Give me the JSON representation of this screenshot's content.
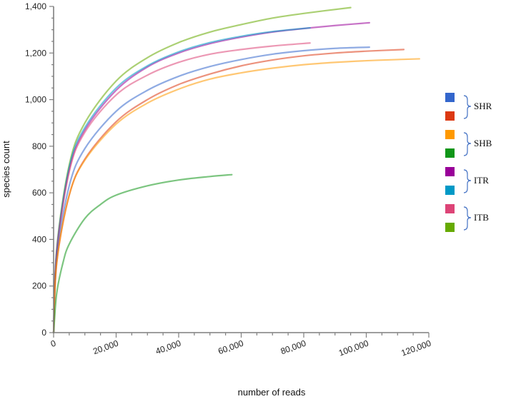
{
  "chart_data": {
    "type": "line",
    "xlabel": "number of reads",
    "ylabel": "species count",
    "xlim": [
      0,
      120000
    ],
    "ylim": [
      0,
      1400
    ],
    "x_ticks": [
      "0",
      "20,000",
      "40,000",
      "60,000",
      "80,000",
      "100,000",
      "120,000"
    ],
    "y_ticks": [
      "0",
      "200",
      "400",
      "600",
      "800",
      "1,000",
      "1,200",
      "1,400"
    ],
    "grid": false,
    "legend_position": "right",
    "legend_groups": [
      {
        "label": "SHR",
        "colors": [
          "#3366cc",
          "#dc3912"
        ]
      },
      {
        "label": "SHB",
        "colors": [
          "#ff9900",
          "#109618"
        ]
      },
      {
        "label": "ITR",
        "colors": [
          "#990099",
          "#0099c6"
        ]
      },
      {
        "label": "ITB",
        "colors": [
          "#dd4477",
          "#66aa00"
        ]
      }
    ],
    "series": [
      {
        "color": "#66aa00",
        "x": [
          0,
          1000,
          5000,
          10000,
          20000,
          30000,
          40000,
          50000,
          60000,
          70000,
          80000,
          95000
        ],
        "y": [
          0,
          360,
          720,
          900,
          1080,
          1180,
          1245,
          1290,
          1322,
          1350,
          1370,
          1395
        ]
      },
      {
        "color": "#990099",
        "x": [
          0,
          1000,
          5000,
          10000,
          20000,
          30000,
          40000,
          50000,
          60000,
          70000,
          80000,
          90000,
          101000
        ],
        "y": [
          0,
          350,
          700,
          870,
          1040,
          1140,
          1200,
          1240,
          1268,
          1290,
          1305,
          1318,
          1330
        ]
      },
      {
        "color": "#0099c6",
        "x": [
          0,
          1000,
          5000,
          10000,
          20000,
          30000,
          40000,
          50000,
          60000,
          70000,
          82000
        ],
        "y": [
          0,
          350,
          710,
          880,
          1050,
          1145,
          1205,
          1245,
          1272,
          1292,
          1308
        ]
      },
      {
        "color": "#dd4477",
        "x": [
          0,
          1000,
          5000,
          10000,
          20000,
          30000,
          40000,
          50000,
          60000,
          70000,
          82000
        ],
        "y": [
          0,
          340,
          690,
          860,
          1020,
          1105,
          1160,
          1195,
          1215,
          1230,
          1243
        ]
      },
      {
        "color": "#3366cc",
        "x": [
          0,
          1000,
          5000,
          10000,
          20000,
          30000,
          40000,
          50000,
          60000,
          70000,
          80000,
          90000,
          101000
        ],
        "y": [
          0,
          320,
          630,
          790,
          950,
          1040,
          1100,
          1142,
          1172,
          1195,
          1210,
          1220,
          1225
        ]
      },
      {
        "color": "#dc3912",
        "x": [
          0,
          1000,
          5000,
          10000,
          20000,
          30000,
          40000,
          50000,
          60000,
          70000,
          80000,
          90000,
          100000,
          112000
        ],
        "y": [
          0,
          300,
          590,
          745,
          905,
          1000,
          1065,
          1110,
          1145,
          1170,
          1188,
          1200,
          1208,
          1215
        ]
      },
      {
        "color": "#ff9900",
        "x": [
          0,
          1000,
          5000,
          10000,
          20000,
          30000,
          40000,
          50000,
          60000,
          70000,
          80000,
          90000,
          100000,
          110000,
          117000
        ],
        "y": [
          0,
          300,
          590,
          740,
          895,
          985,
          1045,
          1088,
          1115,
          1135,
          1150,
          1160,
          1167,
          1172,
          1175
        ]
      },
      {
        "color": "#109618",
        "x": [
          0,
          1000,
          3000,
          5000,
          10000,
          15000,
          20000,
          30000,
          40000,
          50000,
          57000
        ],
        "y": [
          0,
          170,
          300,
          380,
          490,
          550,
          590,
          630,
          655,
          670,
          678
        ]
      }
    ]
  }
}
